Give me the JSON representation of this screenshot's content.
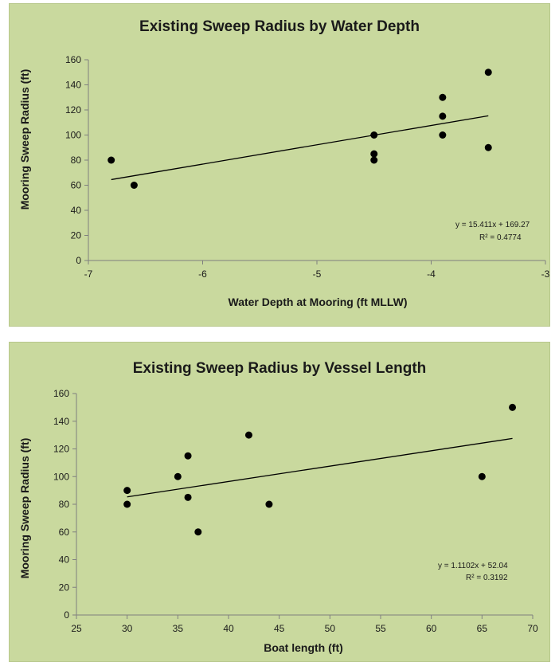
{
  "chart_data": [
    {
      "type": "scatter",
      "title": "Existing Sweep Radius by Water Depth",
      "xlabel": "Water Depth at Mooring (ft MLLW)",
      "ylabel": "Mooring Sweep Radius (ft)",
      "xlim": [
        -7,
        -3
      ],
      "ylim": [
        0,
        160
      ],
      "xticks": [
        -7,
        -6,
        -5,
        -4,
        -3
      ],
      "xtick_labels": [
        "-7",
        "-6",
        "-5",
        "-4",
        "-3"
      ],
      "yticks": [
        0,
        20,
        40,
        60,
        80,
        100,
        120,
        140,
        160
      ],
      "ytick_labels": [
        "0",
        "20",
        "40",
        "60",
        "80",
        "100",
        "120",
        "140",
        "160"
      ],
      "grid": false,
      "points": [
        {
          "x": -6.8,
          "y": 80
        },
        {
          "x": -6.6,
          "y": 60
        },
        {
          "x": -4.5,
          "y": 100
        },
        {
          "x": -4.5,
          "y": 85
        },
        {
          "x": -4.5,
          "y": 80
        },
        {
          "x": -3.9,
          "y": 130
        },
        {
          "x": -3.9,
          "y": 115
        },
        {
          "x": -3.9,
          "y": 100
        },
        {
          "x": -3.5,
          "y": 150
        },
        {
          "x": -3.5,
          "y": 90
        }
      ],
      "trendline": {
        "slope": 15.411,
        "intercept": 169.27,
        "x_range": [
          -6.8,
          -3.5
        ]
      },
      "equation": "y = 15.411x + 169.27",
      "r_squared": "R² = 0.4774",
      "colors": {
        "panel": "#c9d99e",
        "marker": "#000000",
        "line": "#000000"
      }
    },
    {
      "type": "scatter",
      "title": "Existing Sweep Radius by Vessel Length",
      "xlabel": "Boat length (ft)",
      "ylabel": "Mooring Sweep Radius (ft)",
      "xlim": [
        25,
        70
      ],
      "ylim": [
        0,
        160
      ],
      "xticks": [
        25,
        30,
        35,
        40,
        45,
        50,
        55,
        60,
        65,
        70
      ],
      "xtick_labels": [
        "25",
        "30",
        "35",
        "40",
        "45",
        "50",
        "55",
        "60",
        "65",
        "70"
      ],
      "yticks": [
        0,
        20,
        40,
        60,
        80,
        100,
        120,
        140,
        160
      ],
      "ytick_labels": [
        "0",
        "20",
        "40",
        "60",
        "80",
        "100",
        "120",
        "140",
        "160"
      ],
      "grid": false,
      "points": [
        {
          "x": 30,
          "y": 90
        },
        {
          "x": 30,
          "y": 80
        },
        {
          "x": 35,
          "y": 100
        },
        {
          "x": 36,
          "y": 115
        },
        {
          "x": 36,
          "y": 85
        },
        {
          "x": 37,
          "y": 60
        },
        {
          "x": 42,
          "y": 130
        },
        {
          "x": 44,
          "y": 80
        },
        {
          "x": 65,
          "y": 100
        },
        {
          "x": 68,
          "y": 150
        }
      ],
      "trendline": {
        "slope": 1.1102,
        "intercept": 52.04,
        "x_range": [
          30,
          68
        ]
      },
      "equation": "y = 1.1102x + 52.04",
      "r_squared": "R² = 0.3192",
      "colors": {
        "panel": "#c9d99e",
        "marker": "#000000",
        "line": "#000000"
      }
    }
  ]
}
